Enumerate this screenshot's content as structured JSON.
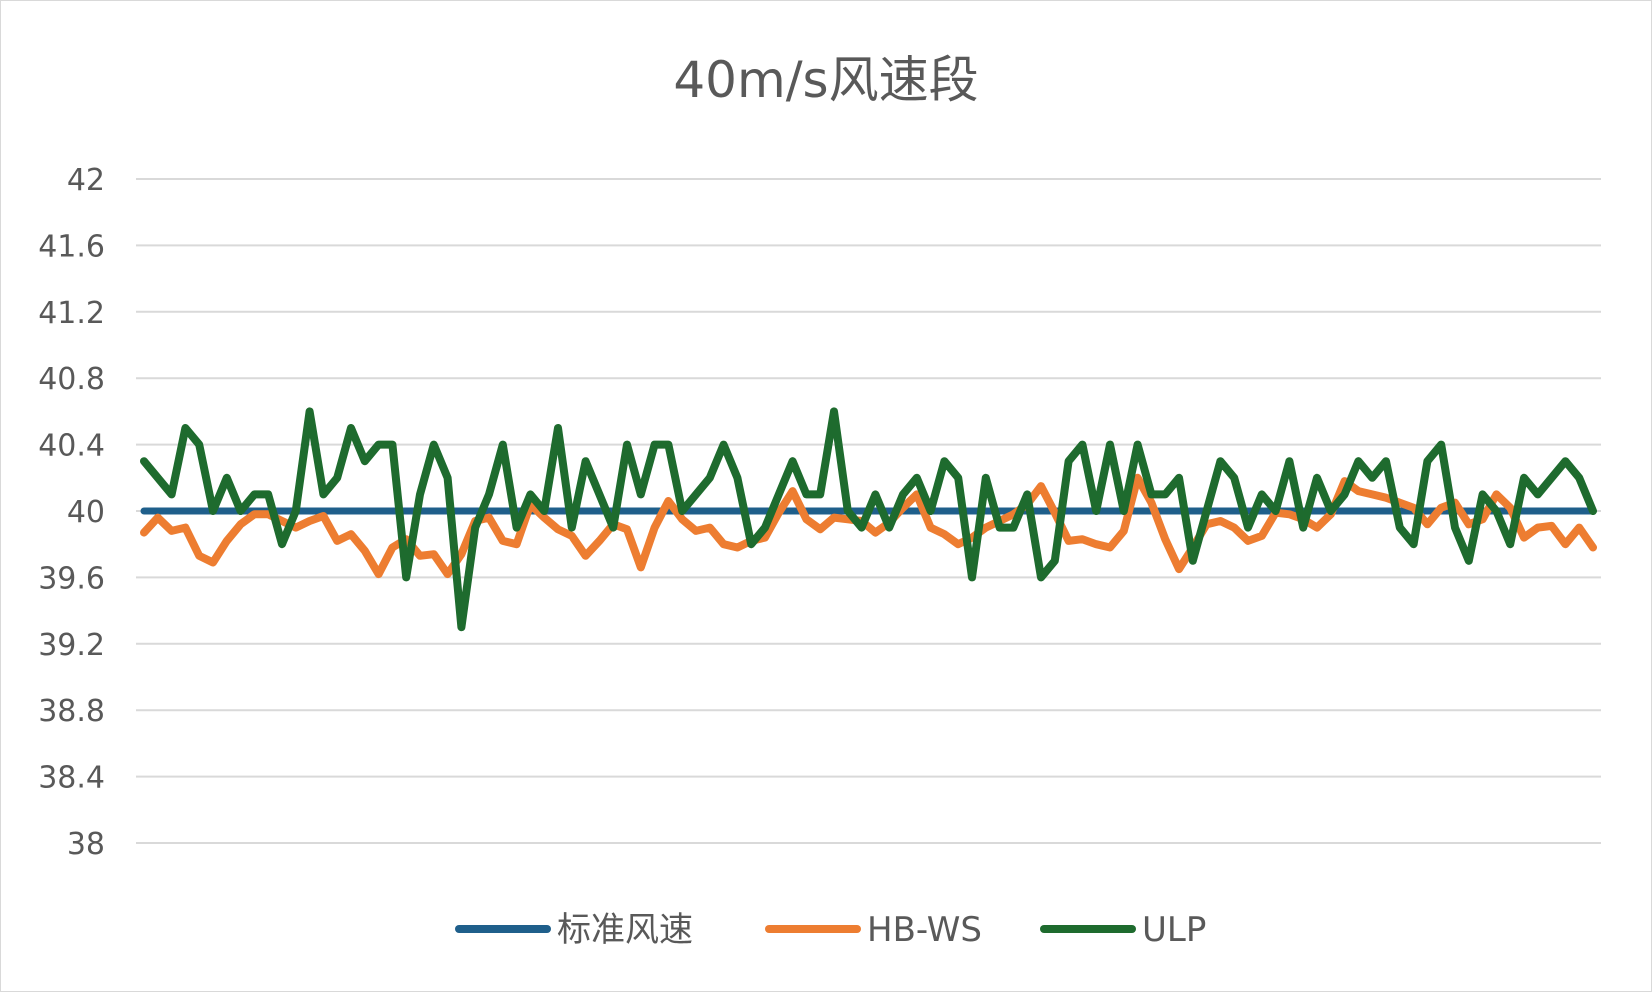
{
  "chart_data": {
    "type": "line",
    "title": "40m/s风速段",
    "xlabel": "",
    "ylabel": "",
    "ylim": [
      38,
      42
    ],
    "yticks": [
      "42",
      "41.6",
      "41.2",
      "40.8",
      "40.4",
      "40",
      "39.6",
      "39.2",
      "38.8",
      "38.4",
      "38"
    ],
    "grid": true,
    "legend": "bottom",
    "x": [
      1,
      2,
      3,
      4,
      5,
      6,
      7,
      8,
      9,
      10,
      11,
      12,
      13,
      14,
      15,
      16,
      17,
      18,
      19,
      20,
      21,
      22,
      23,
      24,
      25,
      26,
      27,
      28,
      29,
      30,
      31,
      32,
      33,
      34,
      35,
      36,
      37,
      38,
      39,
      40,
      41,
      42,
      43,
      44,
      45,
      46,
      47,
      48,
      49,
      50,
      51,
      52,
      53,
      54,
      55,
      56,
      57,
      58,
      59,
      60,
      61,
      62,
      63,
      64,
      65,
      66,
      67,
      68,
      69,
      70,
      71,
      72,
      73,
      74,
      75,
      76,
      77,
      78,
      79,
      80,
      81,
      82,
      83,
      84,
      85,
      86,
      87,
      88,
      89,
      90,
      91,
      92,
      93,
      94,
      95,
      96,
      97,
      98,
      99,
      100,
      101,
      102,
      103,
      104,
      105,
      106
    ],
    "series": [
      {
        "name": "标准风速",
        "color": "#1f5f8b",
        "values": [
          40,
          40,
          40,
          40,
          40,
          40,
          40,
          40,
          40,
          40,
          40,
          40,
          40,
          40,
          40,
          40,
          40,
          40,
          40,
          40,
          40,
          40,
          40,
          40,
          40,
          40,
          40,
          40,
          40,
          40,
          40,
          40,
          40,
          40,
          40,
          40,
          40,
          40,
          40,
          40,
          40,
          40,
          40,
          40,
          40,
          40,
          40,
          40,
          40,
          40,
          40,
          40,
          40,
          40,
          40,
          40,
          40,
          40,
          40,
          40,
          40,
          40,
          40,
          40,
          40,
          40,
          40,
          40,
          40,
          40,
          40,
          40,
          40,
          40,
          40,
          40,
          40,
          40,
          40,
          40,
          40,
          40,
          40,
          40,
          40,
          40,
          40,
          40,
          40,
          40,
          40,
          40,
          40,
          40,
          40,
          40,
          40,
          40,
          40,
          40,
          40,
          40,
          40,
          40,
          40,
          40
        ]
      },
      {
        "name": "HB-WS",
        "color": "#ed7d31",
        "values": [
          39.87,
          39.96,
          39.88,
          39.9,
          39.73,
          39.69,
          39.82,
          39.92,
          39.98,
          39.98,
          39.94,
          39.9,
          39.94,
          39.97,
          39.82,
          39.86,
          39.76,
          39.62,
          39.78,
          39.83,
          39.73,
          39.74,
          39.62,
          39.74,
          39.94,
          39.96,
          39.82,
          39.8,
          40.04,
          39.96,
          39.89,
          39.85,
          39.73,
          39.82,
          39.92,
          39.89,
          39.66,
          39.9,
          40.06,
          39.95,
          39.88,
          39.9,
          39.8,
          39.78,
          39.82,
          39.84,
          39.99,
          40.12,
          39.95,
          39.89,
          39.96,
          39.95,
          39.94,
          39.87,
          39.93,
          40.02,
          40.1,
          39.9,
          39.86,
          39.8,
          39.84,
          39.9,
          39.94,
          39.98,
          40.04,
          40.15,
          39.99,
          39.82,
          39.83,
          39.8,
          39.78,
          39.88,
          40.2,
          40.05,
          39.83,
          39.65,
          39.78,
          39.92,
          39.94,
          39.9,
          39.82,
          39.85,
          39.99,
          39.98,
          39.95,
          39.9,
          39.98,
          40.18,
          40.12,
          40.1,
          40.08,
          40.05,
          40.02,
          39.92,
          40.02,
          40.05,
          39.92,
          39.95,
          40.1,
          40.02,
          39.84,
          39.9,
          39.91,
          39.8,
          39.9,
          39.78
        ]
      },
      {
        "name": "ULP",
        "color": "#1e6b2e",
        "values": [
          40.3,
          40.2,
          40.1,
          40.5,
          40.4,
          40.0,
          40.2,
          40.0,
          40.1,
          40.1,
          39.8,
          40.0,
          40.6,
          40.1,
          40.2,
          40.5,
          40.3,
          40.4,
          40.4,
          39.6,
          40.1,
          40.4,
          40.2,
          39.3,
          39.9,
          40.1,
          40.4,
          39.9,
          40.1,
          40.0,
          40.5,
          39.9,
          40.3,
          40.1,
          39.9,
          40.4,
          40.1,
          40.4,
          40.4,
          40.0,
          40.1,
          40.2,
          40.4,
          40.2,
          39.8,
          39.9,
          40.1,
          40.3,
          40.1,
          40.1,
          40.6,
          40.0,
          39.9,
          40.1,
          39.9,
          40.1,
          40.2,
          40.0,
          40.3,
          40.2,
          39.6,
          40.2,
          39.9,
          39.9,
          40.1,
          39.6,
          39.7,
          40.3,
          40.4,
          40.0,
          40.4,
          40.0,
          40.4,
          40.1,
          40.1,
          40.2,
          39.7,
          40.0,
          40.3,
          40.2,
          39.9,
          40.1,
          40.0,
          40.3,
          39.9,
          40.2,
          40.0,
          40.1,
          40.3,
          40.2,
          40.3,
          39.9,
          39.8,
          40.3,
          40.4,
          39.9,
          39.7,
          40.1,
          40.0,
          39.8,
          40.2,
          40.1,
          40.2,
          40.3,
          40.2,
          40.0
        ]
      }
    ]
  }
}
